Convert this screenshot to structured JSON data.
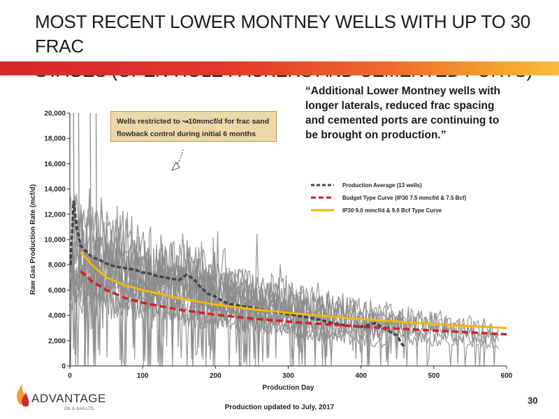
{
  "title_lines": [
    "MOST RECENT LOWER MONTNEY WELLS WITH UP TO 30 FRAC",
    "STAGES (OPEN-HOLE PACKERS AND CEMENTED PORTS)"
  ],
  "quote_lines": [
    "“Additional Lower Montney wells with",
    "longer laterals, reduced frac spacing",
    "and cemented ports are continuing to",
    "be brought  on production.”"
  ],
  "annotation_lines": [
    "Wells restricted to ↝10mmcf/d for frac sand",
    "flowback control during initial 6 months"
  ],
  "footer": "Production updated to July, 2017",
  "page_number": "30",
  "logo": {
    "text": "ADVANTAGE",
    "subtext": "OIL & GAS LTD.",
    "colors": [
      "#f0a030",
      "#d8262b"
    ]
  },
  "banner_colors": [
    "#d8262b",
    "#ee6b2a",
    "#f7bb3c"
  ],
  "chart_data": {
    "type": "line",
    "xlabel": "Production Day",
    "ylabel": "Raw Gas Production Rate (mcf/d)",
    "xlim": [
      0,
      600
    ],
    "ylim": [
      0,
      20000
    ],
    "xticks": [
      "0",
      "100",
      "200",
      "300",
      "400",
      "500",
      "600"
    ],
    "yticks": [
      "0",
      "2,000",
      "4,000",
      "6,000",
      "8,000",
      "10,000",
      "12,000",
      "14,000",
      "16,000",
      "18,000",
      "20,000"
    ],
    "grid": false,
    "legend_position": "right",
    "series": [
      {
        "name": "Production Average (13 wells)",
        "style": "dashed",
        "color": "#444444",
        "x": [
          1,
          5,
          10,
          15,
          20,
          30,
          40,
          50,
          60,
          70,
          80,
          90,
          100,
          110,
          120,
          130,
          140,
          150,
          160,
          170,
          180,
          190,
          200,
          210,
          220,
          240,
          260,
          280,
          300,
          320,
          340,
          360,
          380,
          400,
          420,
          430,
          440,
          450,
          455,
          460
        ],
        "y": [
          8000,
          13000,
          10800,
          9500,
          9200,
          8600,
          8400,
          8100,
          7900,
          7800,
          7700,
          7600,
          7400,
          7300,
          7100,
          7000,
          6900,
          6800,
          7200,
          6900,
          6200,
          5700,
          5500,
          5100,
          4900,
          4700,
          4500,
          4300,
          4100,
          3900,
          3700,
          3400,
          3200,
          3100,
          3400,
          3000,
          2700,
          2400,
          1800,
          1500
        ]
      },
      {
        "name": "Budget Type Curve (IP30 7.5 mmcf/d & 7.5 Bcf)",
        "style": "dashed",
        "color": "#d81f26",
        "x": [
          15,
          30,
          50,
          75,
          100,
          150,
          200,
          250,
          300,
          350,
          400,
          450,
          500,
          550,
          600
        ],
        "y": [
          7500,
          6700,
          6000,
          5400,
          5000,
          4450,
          4050,
          3750,
          3500,
          3300,
          3100,
          2950,
          2800,
          2650,
          2500
        ]
      },
      {
        "name": "IP30 9.0 mmcf/d & 9.0 Bcf Type Curve",
        "style": "solid",
        "color": "#f5b800",
        "x": [
          15,
          30,
          50,
          75,
          100,
          150,
          200,
          250,
          300,
          350,
          400,
          450,
          500,
          550,
          600
        ],
        "y": [
          9000,
          8000,
          7000,
          6400,
          6000,
          5350,
          4850,
          4500,
          4200,
          3950,
          3700,
          3500,
          3300,
          3150,
          3000
        ]
      }
    ]
  }
}
